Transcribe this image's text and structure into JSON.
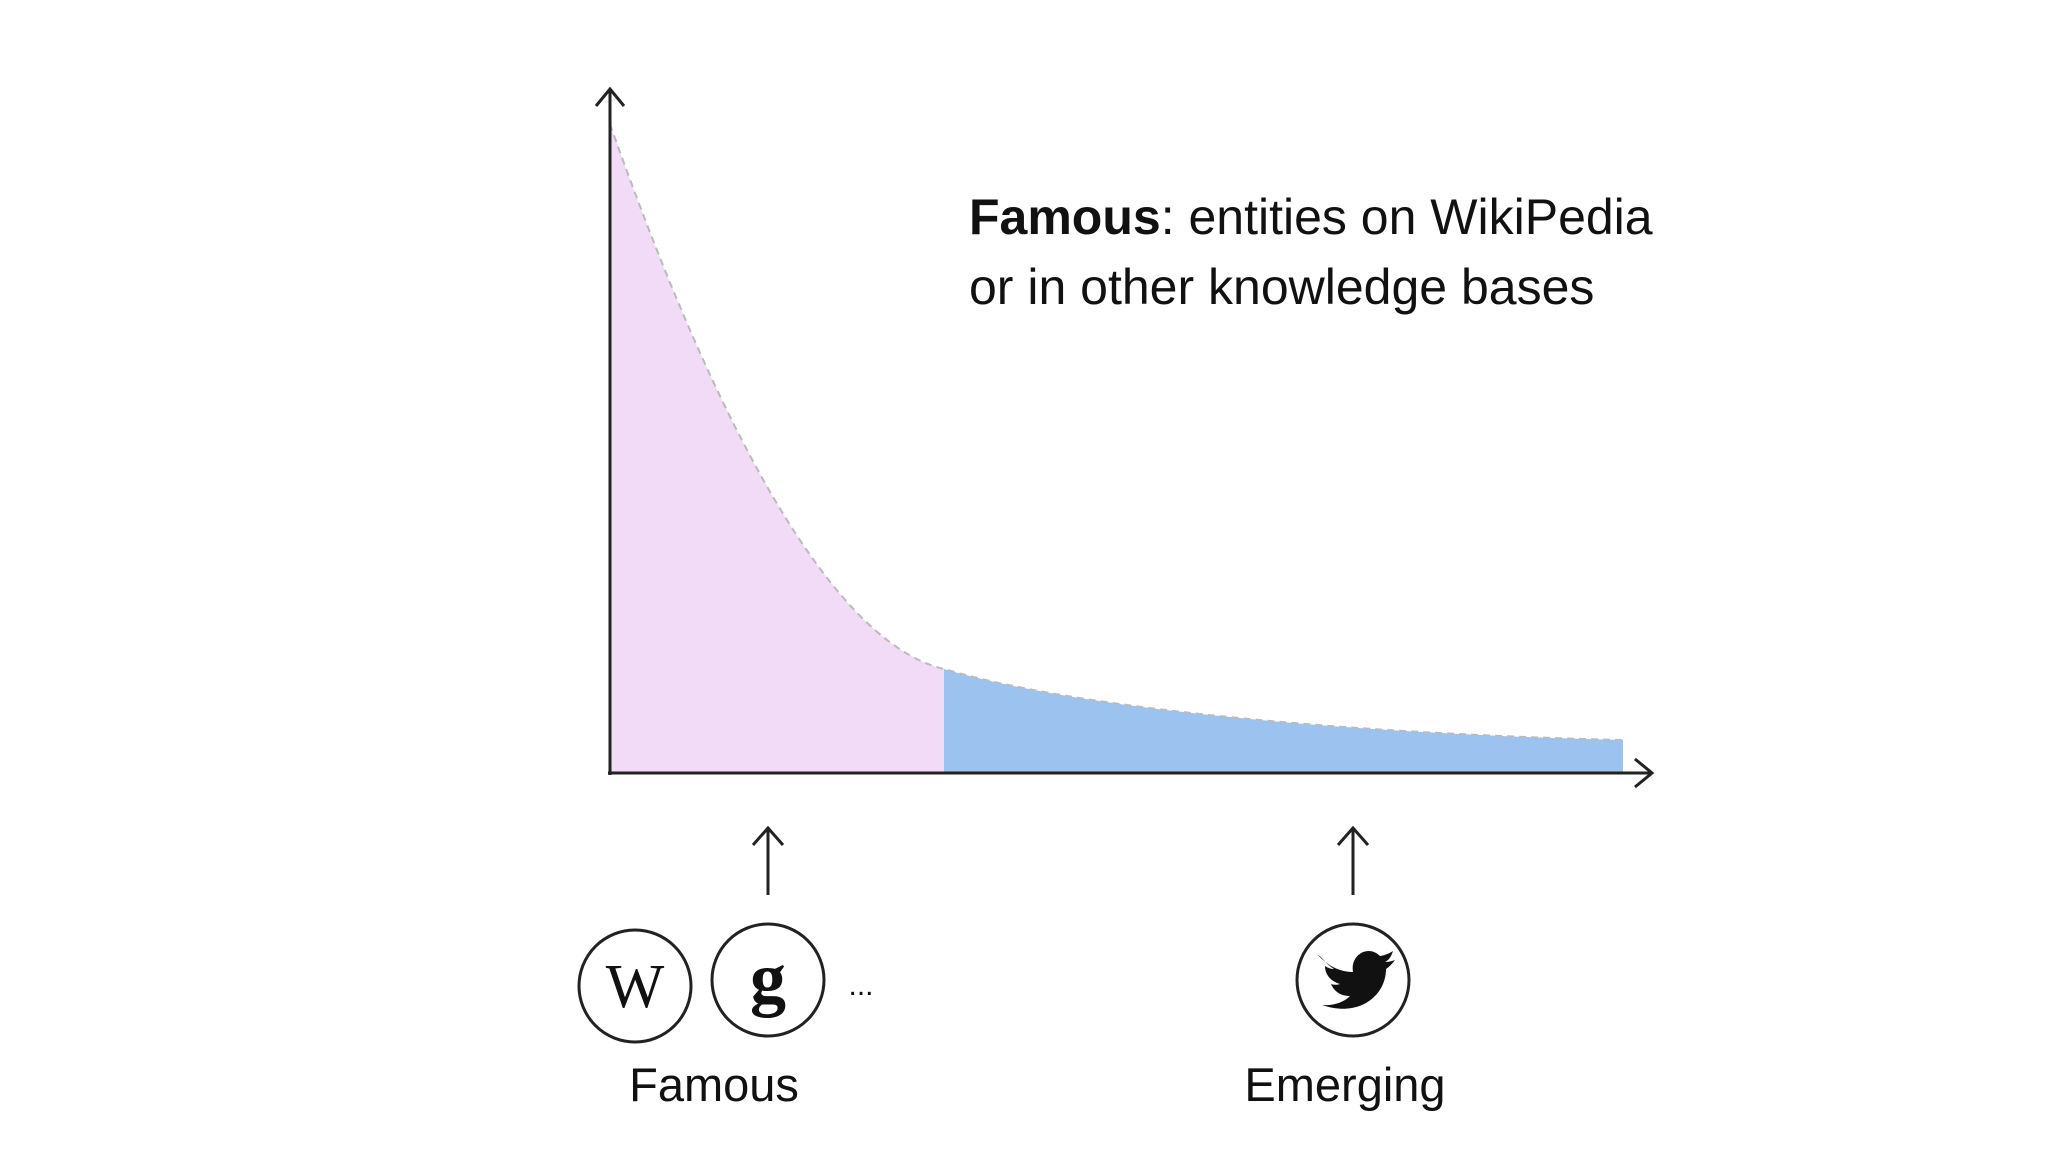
{
  "annotation": {
    "term": "Famous",
    "definition": ": entities on WikiPedia",
    "definition_line2": "or in other knowledge bases"
  },
  "icons": {
    "wikipedia": "W",
    "google": "g",
    "more": "..."
  },
  "labels": {
    "famous": "Famous",
    "emerging": "Emerging"
  }
}
